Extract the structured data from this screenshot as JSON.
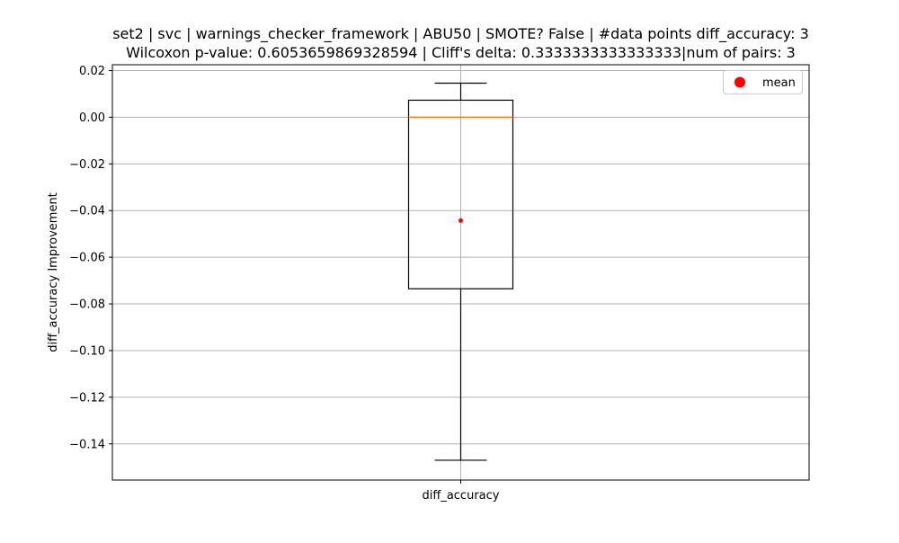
{
  "chart_data": {
    "type": "boxplot",
    "title_line1": "set2 | svc | warnings_checker_framework | ABU50 | SMOTE? False | #data points diff_accuracy: 3",
    "title_line2": "Wilcoxon p-value: 0.6053659869328594 | Cliff's delta: 0.3333333333333333|num of pairs: 3",
    "xlabel": "",
    "ylabel": "diff_accuracy Improvement",
    "categories": [
      "diff_accuracy"
    ],
    "ylim": [
      -0.1555,
      0.0225
    ],
    "yticks": [
      0.02,
      0.0,
      -0.02,
      -0.04,
      -0.06,
      -0.08,
      -0.1,
      -0.12,
      -0.14
    ],
    "ytick_labels": [
      "0.02",
      "0.00",
      "−0.02",
      "−0.04",
      "−0.06",
      "−0.08",
      "−0.10",
      "−0.12",
      "−0.14"
    ],
    "grid": true,
    "box": {
      "whisker_low": -0.147,
      "q1": -0.0735,
      "median": 0.0,
      "q3": 0.0073,
      "whisker_high": 0.0146,
      "mean": -0.0443
    },
    "legend": {
      "position": "top-right",
      "entries": [
        {
          "label": "mean",
          "marker": "circle"
        }
      ]
    },
    "colors": {
      "box": "#000000",
      "median": "#ff7f0e",
      "mean": "#ff0000",
      "grid": "#b0b0b0"
    }
  }
}
